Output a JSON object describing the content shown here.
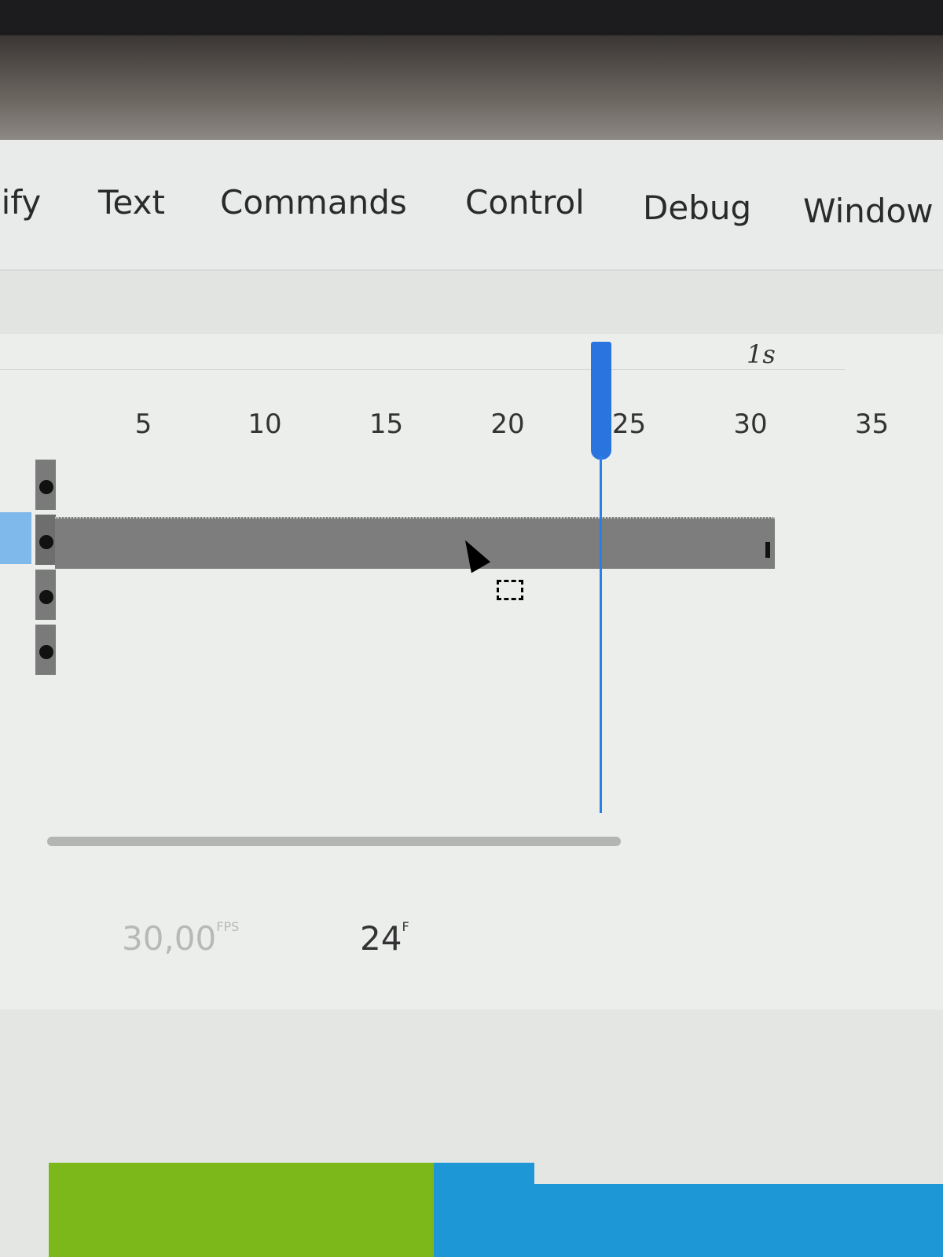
{
  "menu": [
    "lify",
    "Text",
    "Commands",
    "Control",
    "Debug",
    "Window"
  ],
  "timeline": {
    "ruler_ticks": [
      "5",
      "10",
      "15",
      "20",
      "25",
      "30",
      "35"
    ],
    "time_marker": "1s",
    "current_frame": 24,
    "span_end_frame": 31,
    "layer_count": 4,
    "selected_layer": 2,
    "playhead_color": "#2a74e0"
  },
  "status": {
    "fps_value": "30,00",
    "fps_unit": "FPS",
    "frame_value": "24",
    "frame_unit": "F"
  },
  "colors": {
    "green": "#7cb81a",
    "blue": "#1e97d6"
  }
}
